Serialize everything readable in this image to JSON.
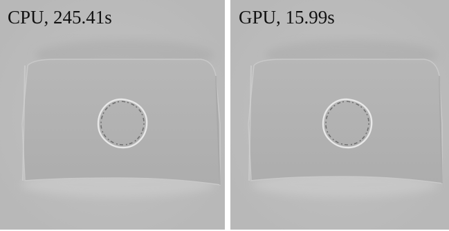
{
  "panels": [
    {
      "caption": "CPU, 245.41s",
      "background": "#bdbdbd",
      "plate_color": "#b2b2b2"
    },
    {
      "caption": "GPU, 15.99s",
      "background": "#bdbdbd",
      "plate_color": "#b2b2b2"
    }
  ]
}
